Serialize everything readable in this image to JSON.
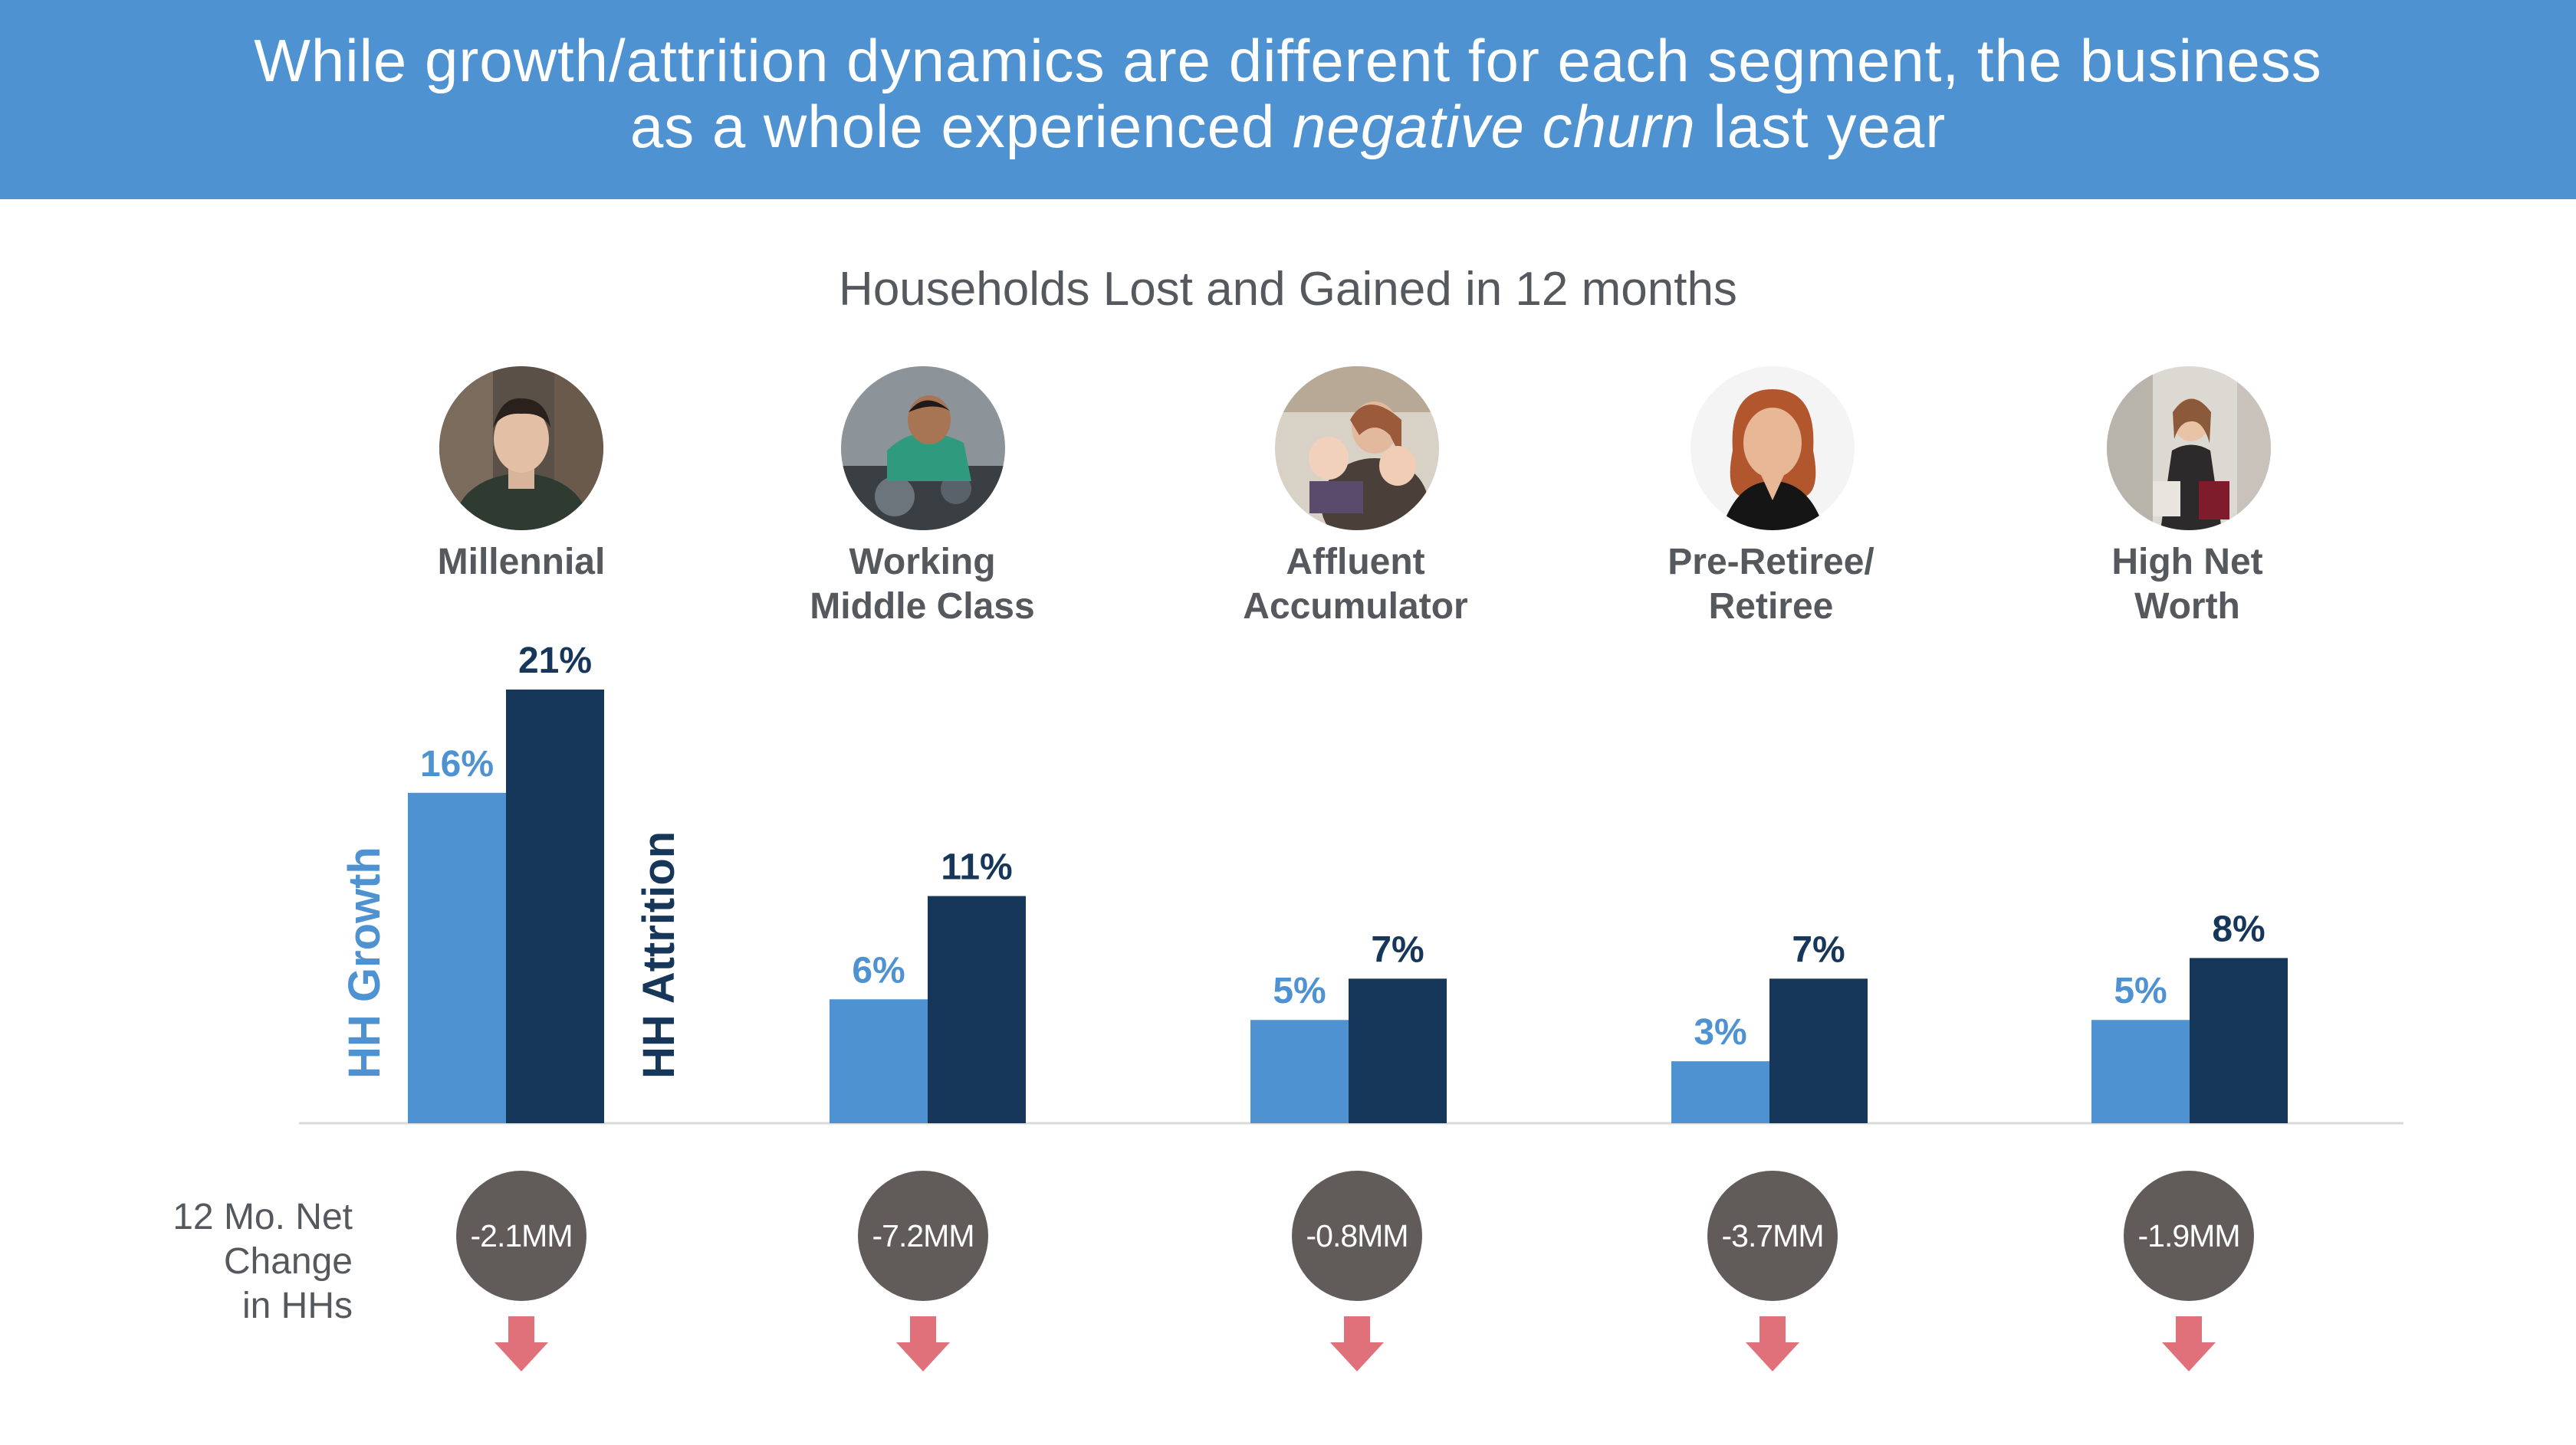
{
  "header": {
    "line1": "While growth/attrition dynamics are different for each segment, the business",
    "line2_prefix": "as a whole experienced ",
    "line2_emphasis": "negative churn",
    "line2_suffix": " last year"
  },
  "colors": {
    "header_bg": "#4F92D2",
    "growth": "#4F92D2",
    "attrition": "#17375A",
    "net_bubble": "#615B5A",
    "arrow": "#E0707A",
    "text_gray": "#55585C"
  },
  "segments": [
    {
      "label_line1": "Millennial",
      "label_line2": "",
      "icon": "young-man-portrait"
    },
    {
      "label_line1": "Working",
      "label_line2": "Middle Class",
      "icon": "mechanic-portrait"
    },
    {
      "label_line1": "Affluent",
      "label_line2": "Accumulator",
      "icon": "mother-children-portrait"
    },
    {
      "label_line1": "Pre-Retiree/",
      "label_line2": "Retiree",
      "icon": "older-woman-portrait"
    },
    {
      "label_line1": "High Net",
      "label_line2": "Worth",
      "icon": "shopper-woman-portrait"
    }
  ],
  "net_change": {
    "label_line1": "12 Mo. Net",
    "label_line2": "Change",
    "label_line3": "in HHs",
    "values": [
      "-2.1MM",
      "-7.2MM",
      "-0.8MM",
      "-3.7MM",
      "-1.9MM"
    ],
    "direction": "down-arrow-icon"
  },
  "chart_data": {
    "type": "bar",
    "title": "Households Lost and Gained in 12 months",
    "categories": [
      "Millennial",
      "Working Middle Class",
      "Affluent Accumulator",
      "Pre-Retiree/Retiree",
      "High Net Worth"
    ],
    "series": [
      {
        "name": "HH Growth",
        "values": [
          16,
          6,
          5,
          3,
          5
        ],
        "labels": [
          "16%",
          "6%",
          "5%",
          "3%",
          "5%"
        ]
      },
      {
        "name": "HH Attrition",
        "values": [
          21,
          11,
          7,
          7,
          8
        ],
        "labels": [
          "21%",
          "11%",
          "7%",
          "7%",
          "8%"
        ]
      }
    ],
    "ylim": [
      0,
      21
    ],
    "xlabel": "",
    "ylabel": "",
    "grid": false,
    "legend": "rotated labels beside first category"
  }
}
